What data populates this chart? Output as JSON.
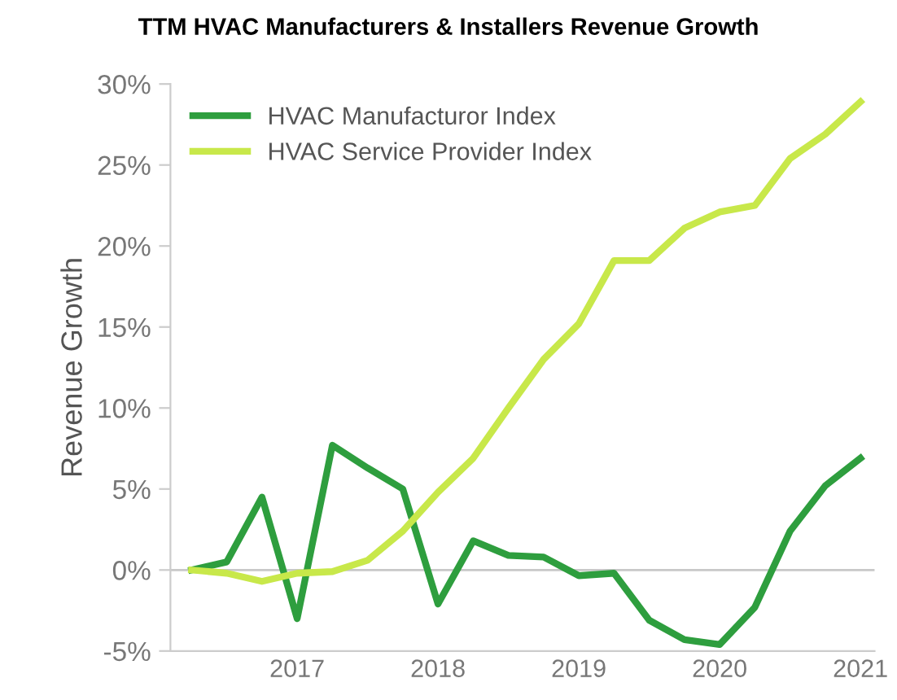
{
  "chart_data": {
    "type": "line",
    "title": "TTM HVAC Manufacturers & Installers Revenue Growth",
    "ylabel": "Revenue Growth",
    "x": [
      2016.25,
      2016.5,
      2016.75,
      2017.0,
      2017.25,
      2017.5,
      2017.75,
      2018.0,
      2018.25,
      2018.5,
      2018.75,
      2019.0,
      2019.25,
      2019.5,
      2019.75,
      2020.0,
      2020.25,
      2020.5,
      2020.75,
      2021.0
    ],
    "series": [
      {
        "name": "HVAC Manufacturor Index",
        "color": "#2e9e3e",
        "values": [
          0,
          0.5,
          4.5,
          -3.0,
          7.7,
          6.3,
          5.0,
          -2.1,
          1.8,
          0.9,
          0.8,
          -0.35,
          -0.2,
          -3.1,
          -4.3,
          -4.6,
          -2.3,
          2.4,
          5.2,
          6.9
        ]
      },
      {
        "name": "HVAC Service Provider Index",
        "color": "#c8e84a",
        "values": [
          0,
          -0.2,
          -0.7,
          -0.2,
          -0.1,
          0.6,
          2.4,
          4.8,
          6.9,
          10.0,
          13.0,
          15.2,
          19.1,
          19.1,
          21.1,
          22.1,
          22.5,
          25.4,
          26.9,
          28.9
        ]
      }
    ],
    "xlim": [
      2016.1,
      2021.1
    ],
    "xticks": [
      2017,
      2018,
      2019,
      2020,
      2021
    ],
    "ylim": [
      -5,
      30
    ],
    "yticks": [
      {
        "value": -5,
        "label": "-5%"
      },
      {
        "value": 0,
        "label": "0%"
      },
      {
        "value": 5,
        "label": "5%"
      },
      {
        "value": 10,
        "label": "10%"
      },
      {
        "value": 15,
        "label": "15%"
      },
      {
        "value": 20,
        "label": "20%"
      },
      {
        "value": 25,
        "label": "25%"
      },
      {
        "value": 30,
        "label": "30%"
      }
    ],
    "ref_lines": [
      {
        "axis": "y",
        "value": 0,
        "color": "#c8c8c8"
      }
    ],
    "grid": false,
    "legend": "top left",
    "marker": "none",
    "line_style": "solid"
  }
}
